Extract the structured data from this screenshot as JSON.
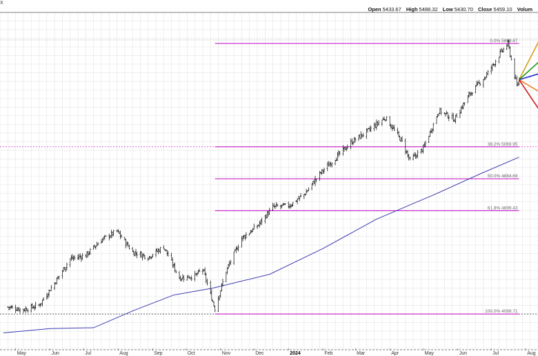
{
  "header": {
    "symbol_fragment": "X",
    "open_label": "Open",
    "open": "5433.67",
    "high_label": "High",
    "high": "5488.32",
    "low_label": "Low",
    "low": "5430.70",
    "close_label": "Close",
    "close": "5459.10",
    "volume_label": "Volum"
  },
  "chart_data": {
    "type": "line",
    "subtype": "ohlc-price-chart",
    "title": "",
    "xlabel": "",
    "ylabel": "",
    "x_tick_labels": [
      "May",
      "Jun",
      "Jul",
      "Aug",
      "Sep",
      "Oct",
      "Nov",
      "Dec",
      "2024",
      "Feb",
      "Mar",
      "Apr",
      "May",
      "Jun",
      "Jul",
      "Aug"
    ],
    "ylim": [
      3900,
      5850
    ],
    "grid": true,
    "moving_average_color": "#3a3ab0",
    "price_color": "#000000",
    "fib_color": "#c000c0",
    "fib_levels": [
      {
        "label": "0.0% 5669.67",
        "value": 5669.67
      },
      {
        "label": "38.2% 5069.95",
        "value": 5069.95
      },
      {
        "label": "50.0% 4884.69",
        "value": 4884.69
      },
      {
        "label": "61.8% 4699.43",
        "value": 4699.43
      },
      {
        "label": "100.0% 4099.71",
        "value": 4099.71
      }
    ],
    "price_series": {
      "name": "",
      "points": [
        [
          "2023-04-24",
          4140
        ],
        [
          "2023-05-08",
          4125
        ],
        [
          "2023-05-22",
          4150
        ],
        [
          "2023-06-05",
          4280
        ],
        [
          "2023-06-19",
          4420
        ],
        [
          "2023-07-03",
          4440
        ],
        [
          "2023-07-17",
          4530
        ],
        [
          "2023-07-31",
          4580
        ],
        [
          "2023-08-14",
          4460
        ],
        [
          "2023-08-28",
          4430
        ],
        [
          "2023-09-11",
          4490
        ],
        [
          "2023-09-25",
          4310
        ],
        [
          "2023-10-09",
          4320
        ],
        [
          "2023-10-16",
          4360
        ],
        [
          "2023-10-27",
          4130
        ],
        [
          "2023-11-06",
          4350
        ],
        [
          "2023-11-20",
          4540
        ],
        [
          "2023-12-04",
          4610
        ],
        [
          "2023-12-18",
          4720
        ],
        [
          "2024-01-02",
          4730
        ],
        [
          "2024-01-16",
          4800
        ],
        [
          "2024-01-30",
          4920
        ],
        [
          "2024-02-13",
          5010
        ],
        [
          "2024-02-27",
          5100
        ],
        [
          "2024-03-12",
          5160
        ],
        [
          "2024-03-28",
          5240
        ],
        [
          "2024-04-12",
          5100
        ],
        [
          "2024-04-19",
          4990
        ],
        [
          "2024-05-01",
          5060
        ],
        [
          "2024-05-15",
          5280
        ],
        [
          "2024-05-29",
          5230
        ],
        [
          "2024-06-12",
          5380
        ],
        [
          "2024-06-26",
          5480
        ],
        [
          "2024-07-10",
          5620
        ],
        [
          "2024-07-16",
          5669
        ],
        [
          "2024-07-24",
          5420
        ],
        [
          "2024-07-26",
          5459
        ]
      ]
    },
    "moving_average": {
      "name": "",
      "points": [
        [
          "2023-04-20",
          3990
        ],
        [
          "2023-06-01",
          4015
        ],
        [
          "2023-07-10",
          4020
        ],
        [
          "2023-08-15",
          4120
        ],
        [
          "2023-09-20",
          4210
        ],
        [
          "2023-10-25",
          4250
        ],
        [
          "2023-12-15",
          4330
        ],
        [
          "2024-02-01",
          4480
        ],
        [
          "2024-03-20",
          4650
        ],
        [
          "2024-05-10",
          4790
        ],
        [
          "2024-06-20",
          4910
        ],
        [
          "2024-07-26",
          5010
        ]
      ]
    },
    "projection_rays_colors": [
      "#d4a017",
      "#1a9a1a",
      "#1f2fd0",
      "#f08020",
      "#d01818"
    ]
  }
}
